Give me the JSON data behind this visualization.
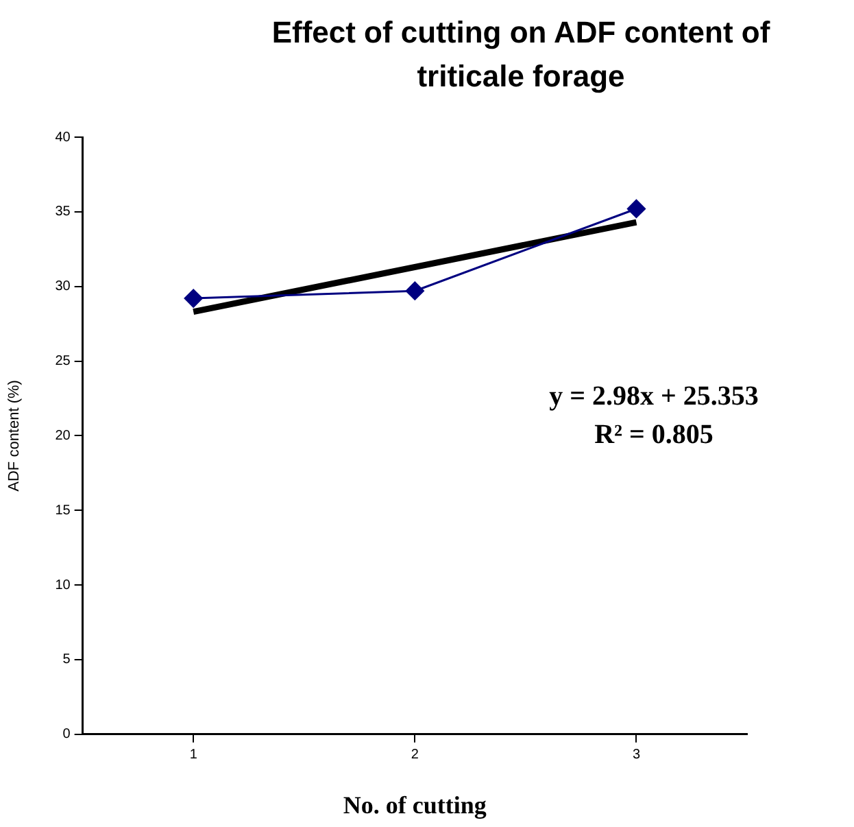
{
  "chart_data": {
    "type": "line",
    "title": "Effect of cutting on ADF content of triticale forage",
    "xlabel": "No. of cutting",
    "ylabel": "ADF content (%)",
    "xlim": [
      0.5,
      3.5
    ],
    "xticks": [
      1,
      2,
      3
    ],
    "ylim": [
      0,
      40
    ],
    "yticks": [
      0,
      5,
      10,
      15,
      20,
      25,
      30,
      35,
      40
    ],
    "grid": false,
    "legend": false,
    "series": [
      {
        "color": "#000080",
        "marker": "diamond",
        "x": [
          1,
          2,
          3
        ],
        "values": [
          29.2,
          29.7,
          35.2
        ]
      },
      {
        "color": "#000000",
        "marker": "none",
        "x": [
          1,
          3
        ],
        "values": [
          28.3,
          34.3
        ]
      }
    ],
    "annotations": [
      "y = 2.98x + 25.353",
      "R² = 0.805"
    ]
  }
}
